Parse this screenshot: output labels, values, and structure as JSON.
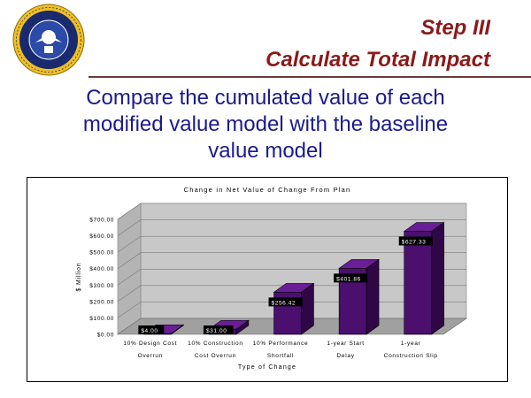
{
  "header": {
    "title_line1": "Step III",
    "title_line2": "Calculate Total Impact",
    "logo_name": "air-force-seal"
  },
  "subtitle": {
    "line1": "Compare the cumulated value of each",
    "line2": "modified value model with the baseline",
    "line3": "value model"
  },
  "colors": {
    "title": "#8b1a1a",
    "subtitle": "#1a1a8c",
    "bar_front": "#4b0f6e",
    "bar_top": "#6a1e96",
    "bar_side": "#2f0747",
    "wall": "#c8c8c8",
    "floor": "#a0a0a0"
  },
  "chart_data": {
    "type": "bar",
    "title": "Change in Net Value of Change From Plan",
    "xlabel": "Type of Change",
    "ylabel": "$ Million",
    "ylim": [
      0,
      700
    ],
    "ytick_labels": [
      "$0.00",
      "$100.00",
      "$200.00",
      "$300.00",
      "$400.00",
      "$500.00",
      "$600.00",
      "$700.00"
    ],
    "categories": [
      [
        "10% Design Cost",
        "Overrun"
      ],
      [
        "10% Construction",
        "Cost Overrun"
      ],
      [
        "10% Performance",
        "Shortfall"
      ],
      [
        "1-year Start",
        "Delay"
      ],
      [
        "1-year",
        "Construction Slip"
      ]
    ],
    "values": [
      4.0,
      31.0,
      256.42,
      401.86,
      627.33
    ],
    "value_labels": [
      "$4.00",
      "$31.00",
      "$256.42",
      "$401.86",
      "$627.33"
    ],
    "grid": true
  }
}
